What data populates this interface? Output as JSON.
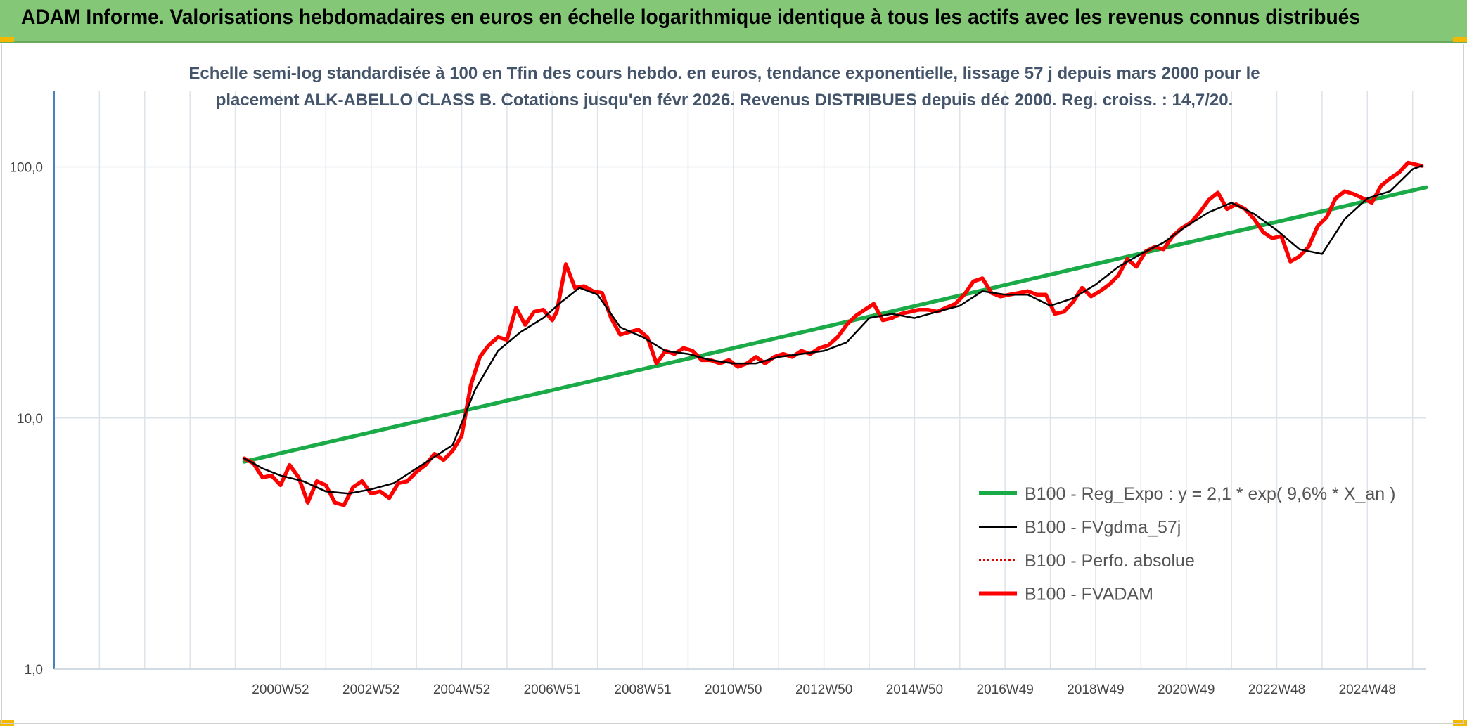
{
  "banner": {
    "title": "ADAM Informe. Valorisations hebdomadaires en euros en échelle logarithmique identique à tous les actifs avec les revenus connus distribués"
  },
  "colors": {
    "banner_bg": "#84c877",
    "accent_corner": "#f5b800",
    "title_text": "#44546a",
    "regression": "#1aaa48",
    "fvgdma": "#000000",
    "perfo": "#e00000",
    "fvadam": "#ff0000",
    "grid": "#dde3ea",
    "axis": "#4a7fc1"
  },
  "chart_data": {
    "type": "line",
    "title": "Echelle semi-log standardisée à 100 en Tfin des cours hebdo. en euros, tendance exponentielle, lissage 57 j depuis mars 2000 pour le placement ALK-ABELLO CLASS B. Cotations jusqu'en févr 2026. Revenus DISTRIBUES depuis déc 2000. Reg. croiss. : 14,7/20.",
    "y_scale": "log",
    "ylim": [
      1,
      200
    ],
    "xlim": [
      1996.0,
      2026.3
    ],
    "y_ticks": [
      {
        "value": 1,
        "label": "1,0"
      },
      {
        "value": 10,
        "label": "10,0"
      },
      {
        "value": 100,
        "label": "100,0"
      }
    ],
    "x_ticks": [
      {
        "value": 2001.0,
        "label": "2000W52"
      },
      {
        "value": 2003.0,
        "label": "2002W52"
      },
      {
        "value": 2005.0,
        "label": "2004W52"
      },
      {
        "value": 2007.0,
        "label": "2006W51"
      },
      {
        "value": 2009.0,
        "label": "2008W51"
      },
      {
        "value": 2011.0,
        "label": "2010W50"
      },
      {
        "value": 2013.0,
        "label": "2012W50"
      },
      {
        "value": 2015.0,
        "label": "2014W50"
      },
      {
        "value": 2017.0,
        "label": "2016W49"
      },
      {
        "value": 2019.0,
        "label": "2018W49"
      },
      {
        "value": 2021.0,
        "label": "2020W49"
      },
      {
        "value": 2023.0,
        "label": "2022W48"
      },
      {
        "value": 2025.0,
        "label": "2024W48"
      }
    ],
    "grid": true,
    "legend_position": "bottom-right",
    "series": [
      {
        "name": "B100 - Reg_Expo : y = 2,1 * exp( 9,6% *  X_an )",
        "color": "#1aaa48",
        "style": "solid-thick",
        "x": [
          2000.2,
          2026.3
        ],
        "y": [
          6.7,
          83.0
        ]
      },
      {
        "name": "B100 - FVgdma_57j",
        "color": "#000000",
        "style": "solid-thin",
        "x": [
          2000.2,
          2000.6,
          2001.0,
          2001.5,
          2002.0,
          2002.5,
          2003.0,
          2003.5,
          2004.0,
          2004.4,
          2004.8,
          2005.3,
          2005.8,
          2006.3,
          2006.8,
          2007.2,
          2007.6,
          2008.0,
          2008.5,
          2009.0,
          2009.5,
          2010.0,
          2010.5,
          2011.0,
          2011.5,
          2012.0,
          2012.5,
          2013.0,
          2013.5,
          2014.0,
          2014.5,
          2015.0,
          2015.5,
          2016.0,
          2016.5,
          2017.0,
          2017.5,
          2018.0,
          2018.5,
          2019.0,
          2019.5,
          2020.0,
          2020.5,
          2021.0,
          2021.5,
          2022.0,
          2022.5,
          2023.0,
          2023.5,
          2024.0,
          2024.5,
          2025.0,
          2025.5,
          2026.0,
          2026.2
        ],
        "y": [
          6.9,
          6.3,
          5.9,
          5.6,
          5.1,
          5.0,
          5.2,
          5.5,
          6.3,
          7.0,
          7.8,
          13.0,
          18.5,
          22.0,
          25.0,
          29.0,
          33.0,
          31.0,
          23.0,
          21.0,
          18.5,
          18.0,
          17.0,
          16.5,
          16.5,
          17.5,
          18.0,
          18.5,
          20.0,
          25.0,
          26.0,
          25.0,
          26.5,
          28.0,
          32.0,
          31.0,
          31.0,
          28.0,
          30.0,
          34.0,
          40.0,
          45.0,
          50.0,
          58.0,
          66.0,
          72.0,
          65.0,
          56.0,
          47.0,
          45.0,
          62.0,
          75.0,
          80.0,
          98.0,
          101.0
        ]
      },
      {
        "name": "B100 - Perfo. absolue",
        "color": "#e00000",
        "style": "dotted",
        "x": [],
        "y": []
      },
      {
        "name": "B100 - FVADAM",
        "color": "#ff0000",
        "style": "solid-thick",
        "x": [
          2000.2,
          2000.4,
          2000.6,
          2000.8,
          2001.0,
          2001.2,
          2001.4,
          2001.6,
          2001.8,
          2002.0,
          2002.2,
          2002.4,
          2002.6,
          2002.8,
          2003.0,
          2003.2,
          2003.4,
          2003.6,
          2003.8,
          2004.0,
          2004.2,
          2004.4,
          2004.6,
          2004.8,
          2005.0,
          2005.2,
          2005.4,
          2005.6,
          2005.8,
          2006.0,
          2006.2,
          2006.4,
          2006.6,
          2006.8,
          2007.0,
          2007.1,
          2007.3,
          2007.5,
          2007.7,
          2007.9,
          2008.1,
          2008.3,
          2008.5,
          2008.7,
          2008.9,
          2009.1,
          2009.3,
          2009.5,
          2009.7,
          2009.9,
          2010.1,
          2010.3,
          2010.5,
          2010.7,
          2010.9,
          2011.1,
          2011.3,
          2011.5,
          2011.7,
          2011.9,
          2012.1,
          2012.3,
          2012.5,
          2012.7,
          2012.9,
          2013.1,
          2013.3,
          2013.5,
          2013.7,
          2013.9,
          2014.1,
          2014.3,
          2014.5,
          2014.7,
          2014.9,
          2015.1,
          2015.3,
          2015.5,
          2015.7,
          2015.9,
          2016.1,
          2016.3,
          2016.5,
          2016.7,
          2016.9,
          2017.1,
          2017.3,
          2017.5,
          2017.7,
          2017.9,
          2018.1,
          2018.3,
          2018.5,
          2018.7,
          2018.9,
          2019.1,
          2019.3,
          2019.5,
          2019.7,
          2019.9,
          2020.1,
          2020.3,
          2020.5,
          2020.7,
          2020.9,
          2021.1,
          2021.3,
          2021.5,
          2021.7,
          2021.9,
          2022.1,
          2022.3,
          2022.5,
          2022.7,
          2022.9,
          2023.1,
          2023.3,
          2023.5,
          2023.7,
          2023.9,
          2024.1,
          2024.3,
          2024.5,
          2024.7,
          2024.9,
          2025.1,
          2025.3,
          2025.5,
          2025.7,
          2025.9,
          2026.1,
          2026.2
        ],
        "y": [
          6.9,
          6.6,
          5.8,
          5.9,
          5.4,
          6.5,
          5.8,
          4.6,
          5.6,
          5.4,
          4.6,
          4.5,
          5.3,
          5.6,
          5.0,
          5.1,
          4.8,
          5.5,
          5.6,
          6.1,
          6.5,
          7.2,
          6.8,
          7.4,
          8.5,
          13.5,
          17.5,
          19.5,
          21.0,
          20.5,
          27.5,
          23.5,
          26.5,
          27.0,
          24.5,
          26.5,
          41.0,
          33.0,
          33.5,
          32.0,
          31.5,
          25.0,
          21.5,
          22.0,
          22.5,
          21.0,
          16.5,
          18.5,
          18.0,
          19.0,
          18.5,
          17.0,
          17.0,
          16.5,
          17.0,
          16.0,
          16.5,
          17.5,
          16.5,
          17.5,
          18.0,
          17.5,
          18.5,
          18.0,
          19.0,
          19.5,
          21.0,
          23.5,
          25.5,
          27.0,
          28.5,
          24.5,
          25.0,
          26.0,
          26.5,
          27.0,
          27.0,
          26.5,
          27.5,
          28.5,
          31.0,
          35.0,
          36.0,
          31.5,
          30.5,
          31.0,
          31.5,
          32.0,
          31.0,
          31.0,
          26.0,
          26.5,
          29.0,
          33.0,
          30.5,
          32.0,
          34.0,
          37.0,
          43.0,
          40.0,
          46.0,
          48.0,
          47.0,
          53.0,
          57.0,
          60.0,
          66.0,
          74.0,
          79.0,
          68.0,
          71.0,
          68.0,
          62.0,
          55.0,
          52.0,
          53.0,
          42.0,
          44.0,
          48.0,
          58.0,
          63.0,
          75.0,
          80.0,
          78.0,
          75.0,
          72.0,
          84.0,
          90.0,
          95.0,
          104.0,
          102.0,
          101.0
        ]
      }
    ]
  }
}
